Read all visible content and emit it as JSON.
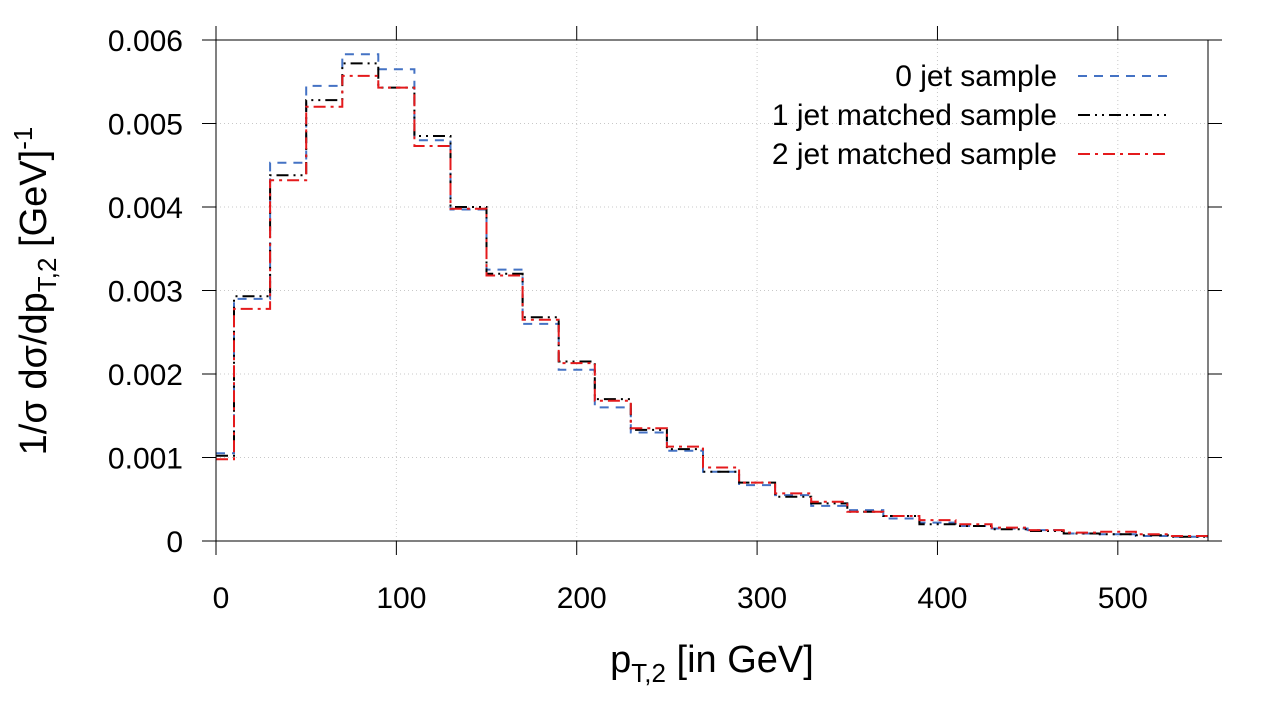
{
  "chart_data": {
    "type": "line",
    "step": true,
    "xlabel": {
      "main": "p",
      "sub": "T,2",
      "rest": " [in GeV]"
    },
    "ylabel": {
      "main": "1/σ dσ/dp",
      "sub": "T,2",
      "mid": " [GeV]",
      "sup": "-1"
    },
    "xlim": [
      0,
      550
    ],
    "ylim": [
      0,
      0.006
    ],
    "xticks": [
      0,
      100,
      200,
      300,
      400,
      500
    ],
    "xtick_labels": [
      "0",
      "100",
      "200",
      "300",
      "400",
      "500"
    ],
    "yticks": [
      0,
      0.001,
      0.002,
      0.003,
      0.004,
      0.005,
      0.006
    ],
    "ytick_labels": [
      "0",
      "0.001",
      "0.002",
      "0.003",
      "0.004",
      "0.005",
      "0.006"
    ],
    "grid": true,
    "legend_position": "top-right",
    "bin_edges": [
      0,
      10,
      30,
      50,
      70,
      90,
      110,
      130,
      150,
      170,
      190,
      210,
      230,
      250,
      270,
      290,
      310,
      330,
      350,
      370,
      390,
      410,
      430,
      450,
      470,
      490,
      510,
      530,
      550
    ],
    "series": [
      {
        "name": "0 jet sample",
        "color": "#4472c4",
        "dash": "dashed",
        "values": [
          0.00105,
          0.0029,
          0.00453,
          0.00545,
          0.00583,
          0.00565,
          0.0048,
          0.00397,
          0.00325,
          0.0026,
          0.00205,
          0.0016,
          0.0013,
          0.00108,
          0.00083,
          0.00067,
          0.00055,
          0.00042,
          0.00037,
          0.00027,
          0.00022,
          0.00018,
          0.00015,
          0.00013,
          9e-05,
          8e-05,
          6e-05,
          5e-05
        ]
      },
      {
        "name": "1 jet matched sample",
        "color": "#000000",
        "dash": "dash-dot-dot",
        "values": [
          0.00102,
          0.00293,
          0.00438,
          0.00528,
          0.00572,
          0.00543,
          0.00485,
          0.004,
          0.0032,
          0.00268,
          0.00215,
          0.0017,
          0.00133,
          0.0011,
          0.00083,
          0.0007,
          0.00053,
          0.00045,
          0.00035,
          0.0003,
          0.0002,
          0.00018,
          0.00014,
          0.00012,
          9e-05,
          8e-05,
          7e-05,
          5e-05
        ]
      },
      {
        "name": "2 jet matched sample",
        "color": "#e41a1c",
        "dash": "dash-dot",
        "values": [
          0.00098,
          0.00278,
          0.00432,
          0.0052,
          0.00557,
          0.00543,
          0.00473,
          0.00398,
          0.00318,
          0.00265,
          0.00213,
          0.00168,
          0.00135,
          0.00113,
          0.00088,
          0.0007,
          0.00057,
          0.00047,
          0.00035,
          0.0003,
          0.00025,
          0.0002,
          0.00016,
          0.00013,
          0.0001,
          0.00011,
          8e-05,
          6e-05
        ]
      }
    ]
  }
}
